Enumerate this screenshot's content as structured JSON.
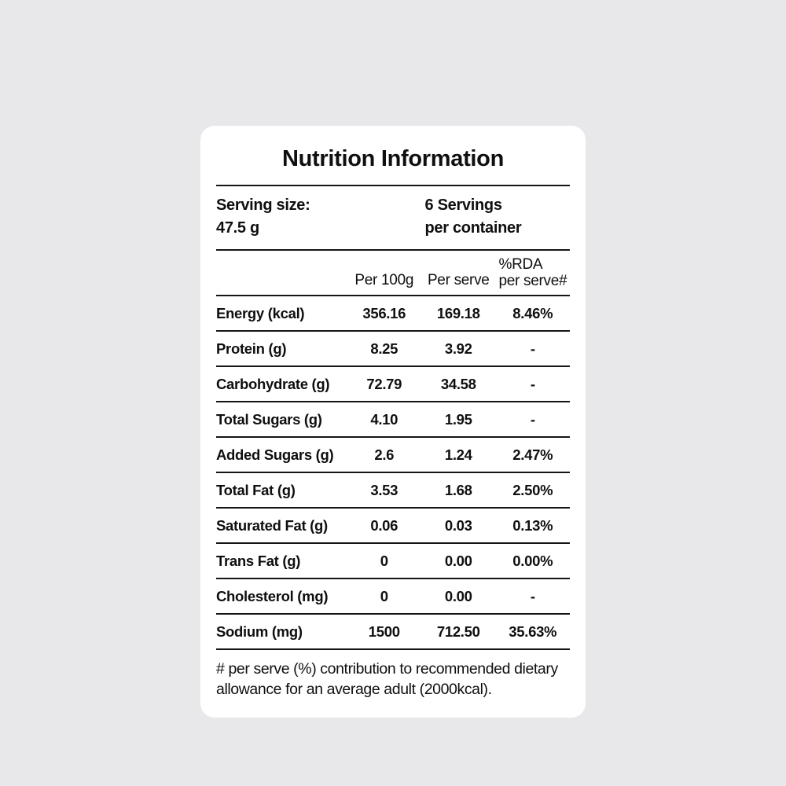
{
  "colors": {
    "page_background": "#e8e8ea",
    "card_background": "#ffffff",
    "text": "#0f0f0f",
    "rule_lines": "#141414"
  },
  "label": {
    "title": "Nutrition Information",
    "serving": {
      "size_label": "Serving size:",
      "size_value": "47.5 g",
      "servings_line1": "6 Servings",
      "servings_line2": "per container"
    },
    "columns": {
      "per_100g": "Per 100g",
      "per_serve": "Per serve",
      "rda_line1": "%RDA",
      "rda_line2": "per serve#"
    },
    "rows": [
      {
        "label": "Energy (kcal)",
        "per_100g": "356.16",
        "per_serve": "169.18",
        "rda": "8.46%"
      },
      {
        "label": "Protein (g)",
        "per_100g": "8.25",
        "per_serve": "3.92",
        "rda": "-"
      },
      {
        "label": "Carbohydrate (g)",
        "per_100g": "72.79",
        "per_serve": "34.58",
        "rda": "-"
      },
      {
        "label": "Total Sugars (g)",
        "per_100g": "4.10",
        "per_serve": "1.95",
        "rda": "-"
      },
      {
        "label": "Added Sugars (g)",
        "per_100g": "2.6",
        "per_serve": "1.24",
        "rda": "2.47%"
      },
      {
        "label": "Total Fat (g)",
        "per_100g": "3.53",
        "per_serve": "1.68",
        "rda": "2.50%"
      },
      {
        "label": "Saturated Fat (g)",
        "per_100g": "0.06",
        "per_serve": "0.03",
        "rda": "0.13%"
      },
      {
        "label": "Trans Fat (g)",
        "per_100g": "0",
        "per_serve": "0.00",
        "rda": "0.00%"
      },
      {
        "label": "Cholesterol (mg)",
        "per_100g": "0",
        "per_serve": "0.00",
        "rda": "-"
      },
      {
        "label": "Sodium (mg)",
        "per_100g": "1500",
        "per_serve": "712.50",
        "rda": "35.63%"
      }
    ],
    "footnote": "# per serve (%) contribution to recommended dietary allowance for an average adult (2000kcal)."
  }
}
